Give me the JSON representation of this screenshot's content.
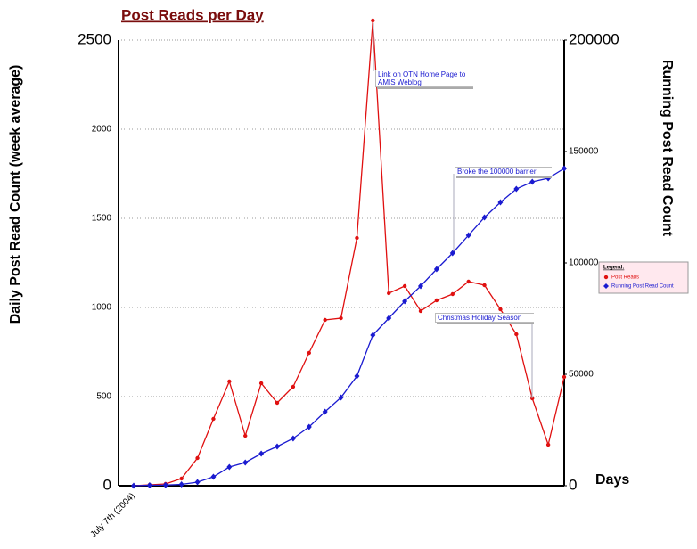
{
  "chart_data": {
    "type": "line",
    "title": "Post Reads per Day",
    "y_label": "Daily Post Read Count (week average)",
    "y2_label": "Running Post Read Count",
    "x_label": "Days",
    "categories": [
      "July 7th (2004)",
      null,
      null,
      null,
      null,
      null,
      null,
      null,
      null,
      null,
      null,
      null,
      null,
      null,
      null,
      null,
      null,
      null,
      null,
      null,
      null,
      null,
      null,
      null,
      null,
      null,
      null,
      null
    ],
    "series": [
      {
        "name": "Post Reads",
        "color": "#e01010",
        "marker": "circle",
        "values": [
          0,
          5,
          10,
          40,
          155,
          375,
          585,
          280,
          575,
          465,
          555,
          745,
          930,
          940,
          1390,
          2610,
          1080,
          1120,
          980,
          1040,
          1075,
          1145,
          1125,
          990,
          850,
          490,
          230,
          610
        ]
      },
      {
        "name": "Running Post Read Count",
        "color": "#1a1ad0",
        "marker": "diamond",
        "axis": "y2",
        "values": [
          0,
          200,
          300,
          600,
          1600,
          4000,
          8400,
          10400,
          14400,
          17600,
          21200,
          26400,
          33200,
          39600,
          49200,
          67600,
          75200,
          82800,
          89600,
          97200,
          104400,
          112400,
          120400,
          127200,
          133200,
          136400,
          138000,
          142400
        ]
      }
    ],
    "ylim": [
      0,
      2500
    ],
    "yticks": [
      0,
      500,
      1000,
      1500,
      2000,
      2500
    ],
    "y2lim": [
      0,
      200000
    ],
    "y2ticks": [
      0,
      50000,
      100000,
      150000,
      200000
    ],
    "grid": true,
    "legend_title": "Legend:",
    "legend": "right",
    "annotations": [
      "Link on OTN Home Page to AMIS Weblog",
      "Broke the 100000 barrier",
      "Christmas Holiday Season"
    ]
  }
}
